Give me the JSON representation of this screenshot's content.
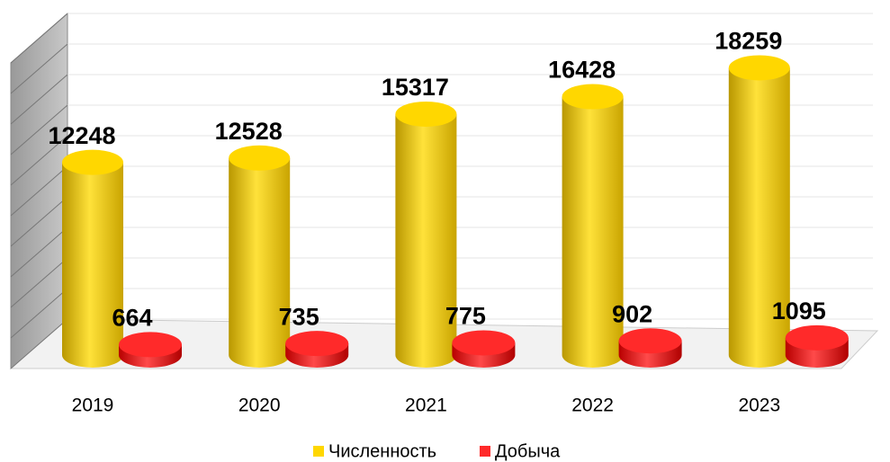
{
  "chart_data": {
    "type": "bar3d",
    "categories": [
      "2019",
      "2020",
      "2021",
      "2022",
      "2023"
    ],
    "series": [
      {
        "name": "Численность",
        "color": "#ffd700",
        "values": [
          12248,
          12528,
          15317,
          16428,
          18259
        ]
      },
      {
        "name": "Добыча",
        "color": "#ff2a2a",
        "values": [
          664,
          735,
          775,
          902,
          1095
        ]
      }
    ],
    "ylim": [
      0,
      20000
    ],
    "grid": true
  }
}
